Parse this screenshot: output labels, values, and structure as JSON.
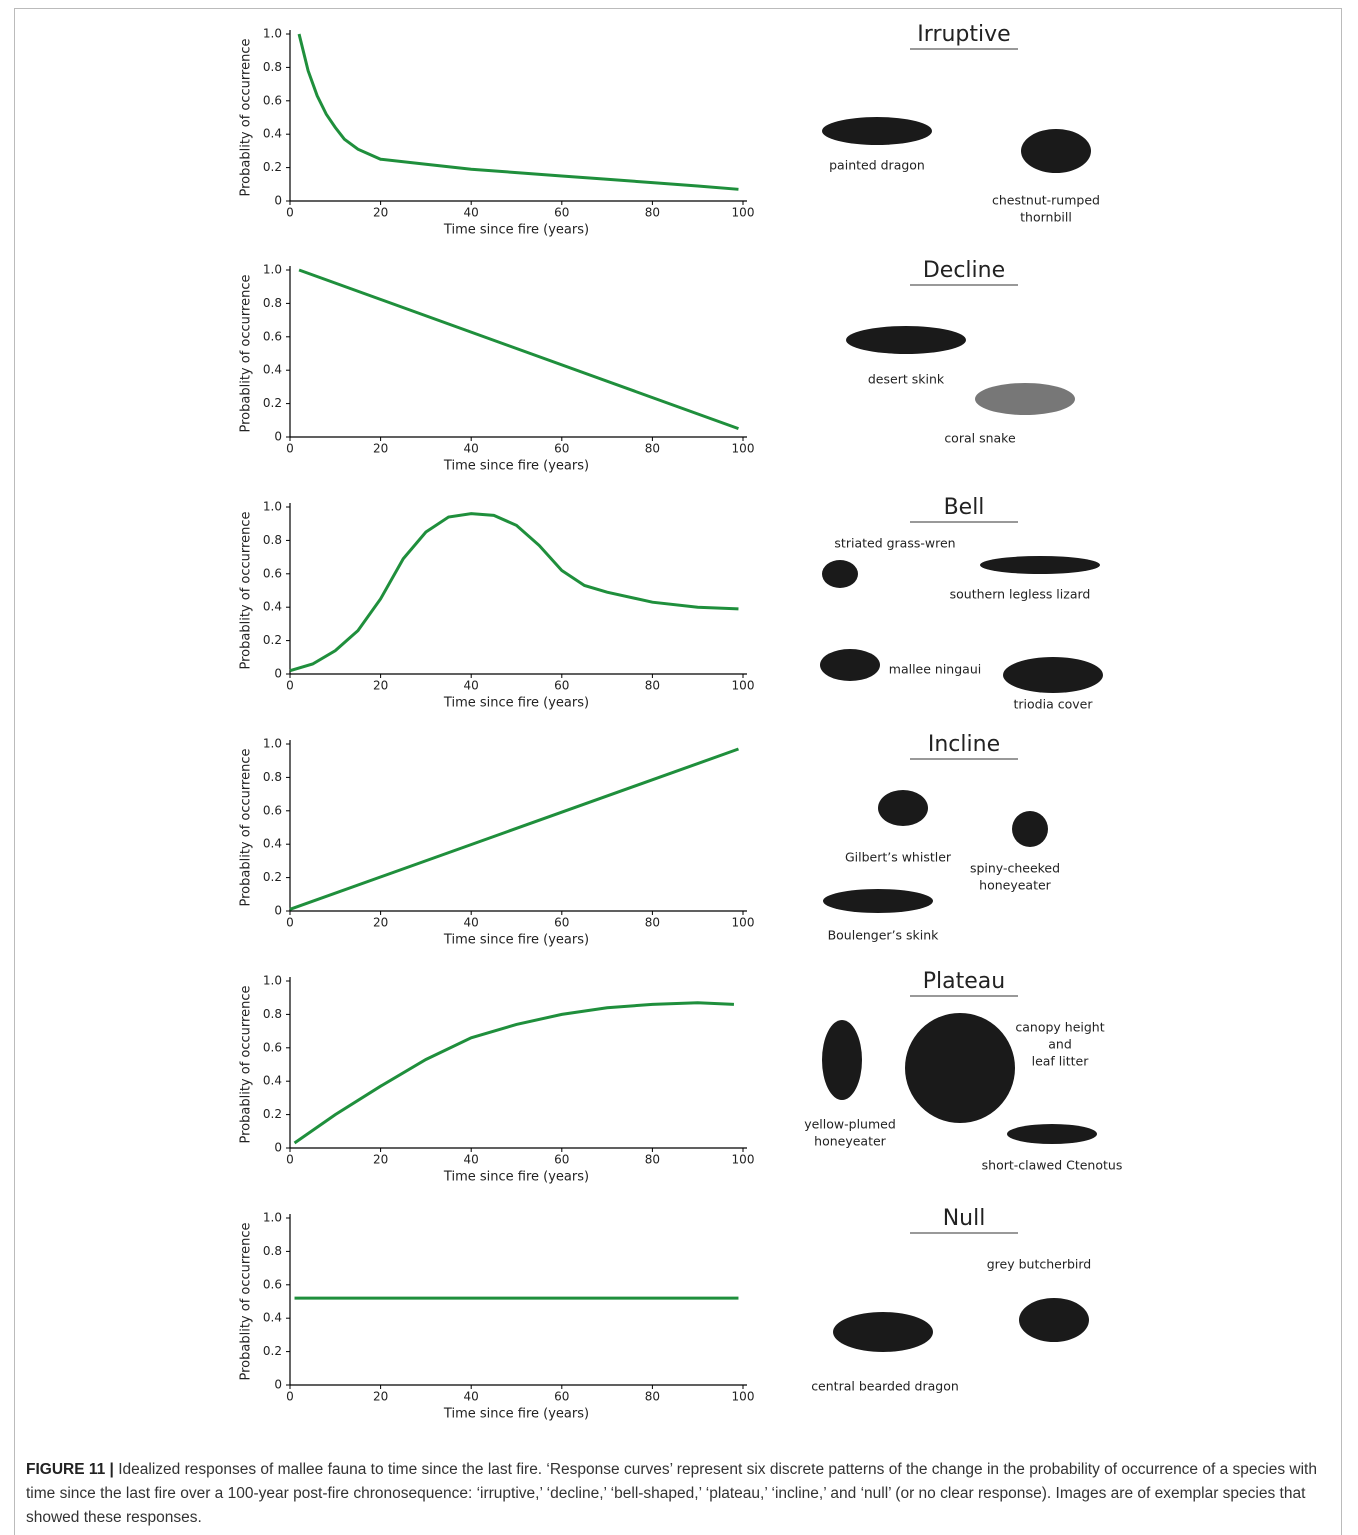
{
  "chart_data": [
    {
      "type": "line",
      "title": "Irruptive",
      "xlabel": "Time since fire (years)",
      "ylabel": "Probablity of occurrence",
      "color": "#1f8f3c",
      "x": [
        2,
        4,
        6,
        8,
        10,
        12,
        15,
        20,
        30,
        40,
        50,
        60,
        70,
        80,
        90,
        99
      ],
      "values": [
        1.0,
        0.78,
        0.63,
        0.52,
        0.44,
        0.37,
        0.31,
        0.25,
        0.22,
        0.19,
        0.17,
        0.15,
        0.13,
        0.11,
        0.09,
        0.07
      ],
      "xlim": [
        0,
        100
      ],
      "ylim": [
        0,
        1
      ],
      "xticks": [
        0,
        20,
        40,
        60,
        80,
        100
      ],
      "yticks": [
        0,
        0.2,
        0.4,
        0.6,
        0.8,
        {
          "value": 1,
          "label": "1.0"
        }
      ],
      "annotations": [
        [
          "painted dragon"
        ],
        [
          "chestnut-rumped",
          "thornbill"
        ]
      ]
    },
    {
      "type": "line",
      "title": "Decline",
      "xlabel": "Time since fire (years)",
      "ylabel": "Probablity of occurrence",
      "color": "#1f8f3c",
      "x": [
        2,
        99
      ],
      "values": [
        1.0,
        0.05
      ],
      "xlim": [
        0,
        100
      ],
      "ylim": [
        0,
        1
      ],
      "xticks": [
        0,
        20,
        40,
        60,
        80,
        100
      ],
      "yticks": [
        0,
        0.2,
        0.4,
        0.6,
        0.8,
        {
          "value": 1,
          "label": "1.0"
        }
      ],
      "annotations": [
        [
          "desert skink"
        ],
        [
          "coral snake"
        ]
      ]
    },
    {
      "type": "line",
      "title": "Bell",
      "xlabel": "Time since fire (years)",
      "ylabel": "Probablity of occurrence",
      "color": "#1f8f3c",
      "x": [
        0,
        5,
        10,
        15,
        20,
        25,
        30,
        35,
        40,
        45,
        50,
        55,
        60,
        65,
        70,
        80,
        90,
        99
      ],
      "values": [
        0.02,
        0.06,
        0.14,
        0.26,
        0.45,
        0.69,
        0.85,
        0.94,
        0.96,
        0.95,
        0.89,
        0.77,
        0.62,
        0.53,
        0.49,
        0.43,
        0.4,
        0.39
      ],
      "xlim": [
        0,
        100
      ],
      "ylim": [
        0,
        1
      ],
      "xticks": [
        0,
        20,
        40,
        60,
        80,
        100
      ],
      "yticks": [
        0,
        0.2,
        0.4,
        0.6,
        0.8,
        {
          "value": 1,
          "label": "1.0"
        }
      ],
      "annotations": [
        [
          "striated grass-wren"
        ],
        [
          "southern legless lizard"
        ],
        [
          "mallee ningaui"
        ],
        [
          "triodia cover"
        ]
      ]
    },
    {
      "type": "line",
      "title": "Incline",
      "xlabel": "Time since fire (years)",
      "ylabel": "Probablity of occurrence",
      "color": "#1f8f3c",
      "x": [
        0,
        99
      ],
      "values": [
        0.01,
        0.97
      ],
      "xlim": [
        0,
        100
      ],
      "ylim": [
        0,
        1
      ],
      "xticks": [
        0,
        20,
        40,
        60,
        80,
        100
      ],
      "yticks": [
        0,
        0.2,
        0.4,
        0.6,
        0.8,
        {
          "value": 1,
          "label": "1.0"
        }
      ],
      "annotations": [
        [
          "Gilbert’s whistler"
        ],
        [
          "spiny-cheeked",
          "honeyeater"
        ],
        [
          "Boulenger’s skink"
        ]
      ]
    },
    {
      "type": "line",
      "title": "Plateau",
      "xlabel": "Time since fire (years)",
      "ylabel": "Probablity of occurrence",
      "color": "#1f8f3c",
      "x": [
        1,
        10,
        20,
        30,
        40,
        50,
        60,
        70,
        80,
        90,
        98
      ],
      "values": [
        0.03,
        0.2,
        0.37,
        0.53,
        0.66,
        0.74,
        0.8,
        0.84,
        0.86,
        0.87,
        0.86
      ],
      "xlim": [
        0,
        100
      ],
      "ylim": [
        0,
        1
      ],
      "xticks": [
        0,
        20,
        40,
        60,
        80,
        100
      ],
      "yticks": [
        0,
        0.2,
        0.4,
        0.6,
        0.8,
        {
          "value": 1,
          "label": "1.0"
        }
      ],
      "annotations": [
        [
          "yellow-plumed",
          "honeyeater"
        ],
        [
          "canopy height",
          "and",
          "leaf litter"
        ],
        [
          "short-clawed Ctenotus"
        ]
      ]
    },
    {
      "type": "line",
      "title": "Null",
      "xlabel": "Time since fire (years)",
      "ylabel": "Probablity of occurrence",
      "color": "#1f8f3c",
      "x": [
        1,
        99
      ],
      "values": [
        0.52,
        0.52
      ],
      "xlim": [
        0,
        100
      ],
      "ylim": [
        0,
        1
      ],
      "xticks": [
        0,
        20,
        40,
        60,
        80,
        100
      ],
      "yticks": [
        0,
        0.2,
        0.4,
        0.6,
        0.8,
        {
          "value": 1,
          "label": "1.0"
        }
      ],
      "annotations": [
        [
          "grey butcherbird"
        ],
        [
          "central bearded dragon"
        ]
      ]
    }
  ],
  "caption": {
    "label": "FIGURE 11 |",
    "text": "Idealized responses of mallee fauna to time since the last fire. ‘Response curves’ represent six discrete patterns of the change in the probability of occurrence of a species with time since the last fire over a 100-year post-fire chronosequence: ‘irruptive,’ ‘decline,’ ‘bell-shaped,’ ‘plateau,’ ‘incline,’ and ‘null’ (or no clear response). Images are of exemplar species that showed these responses."
  }
}
